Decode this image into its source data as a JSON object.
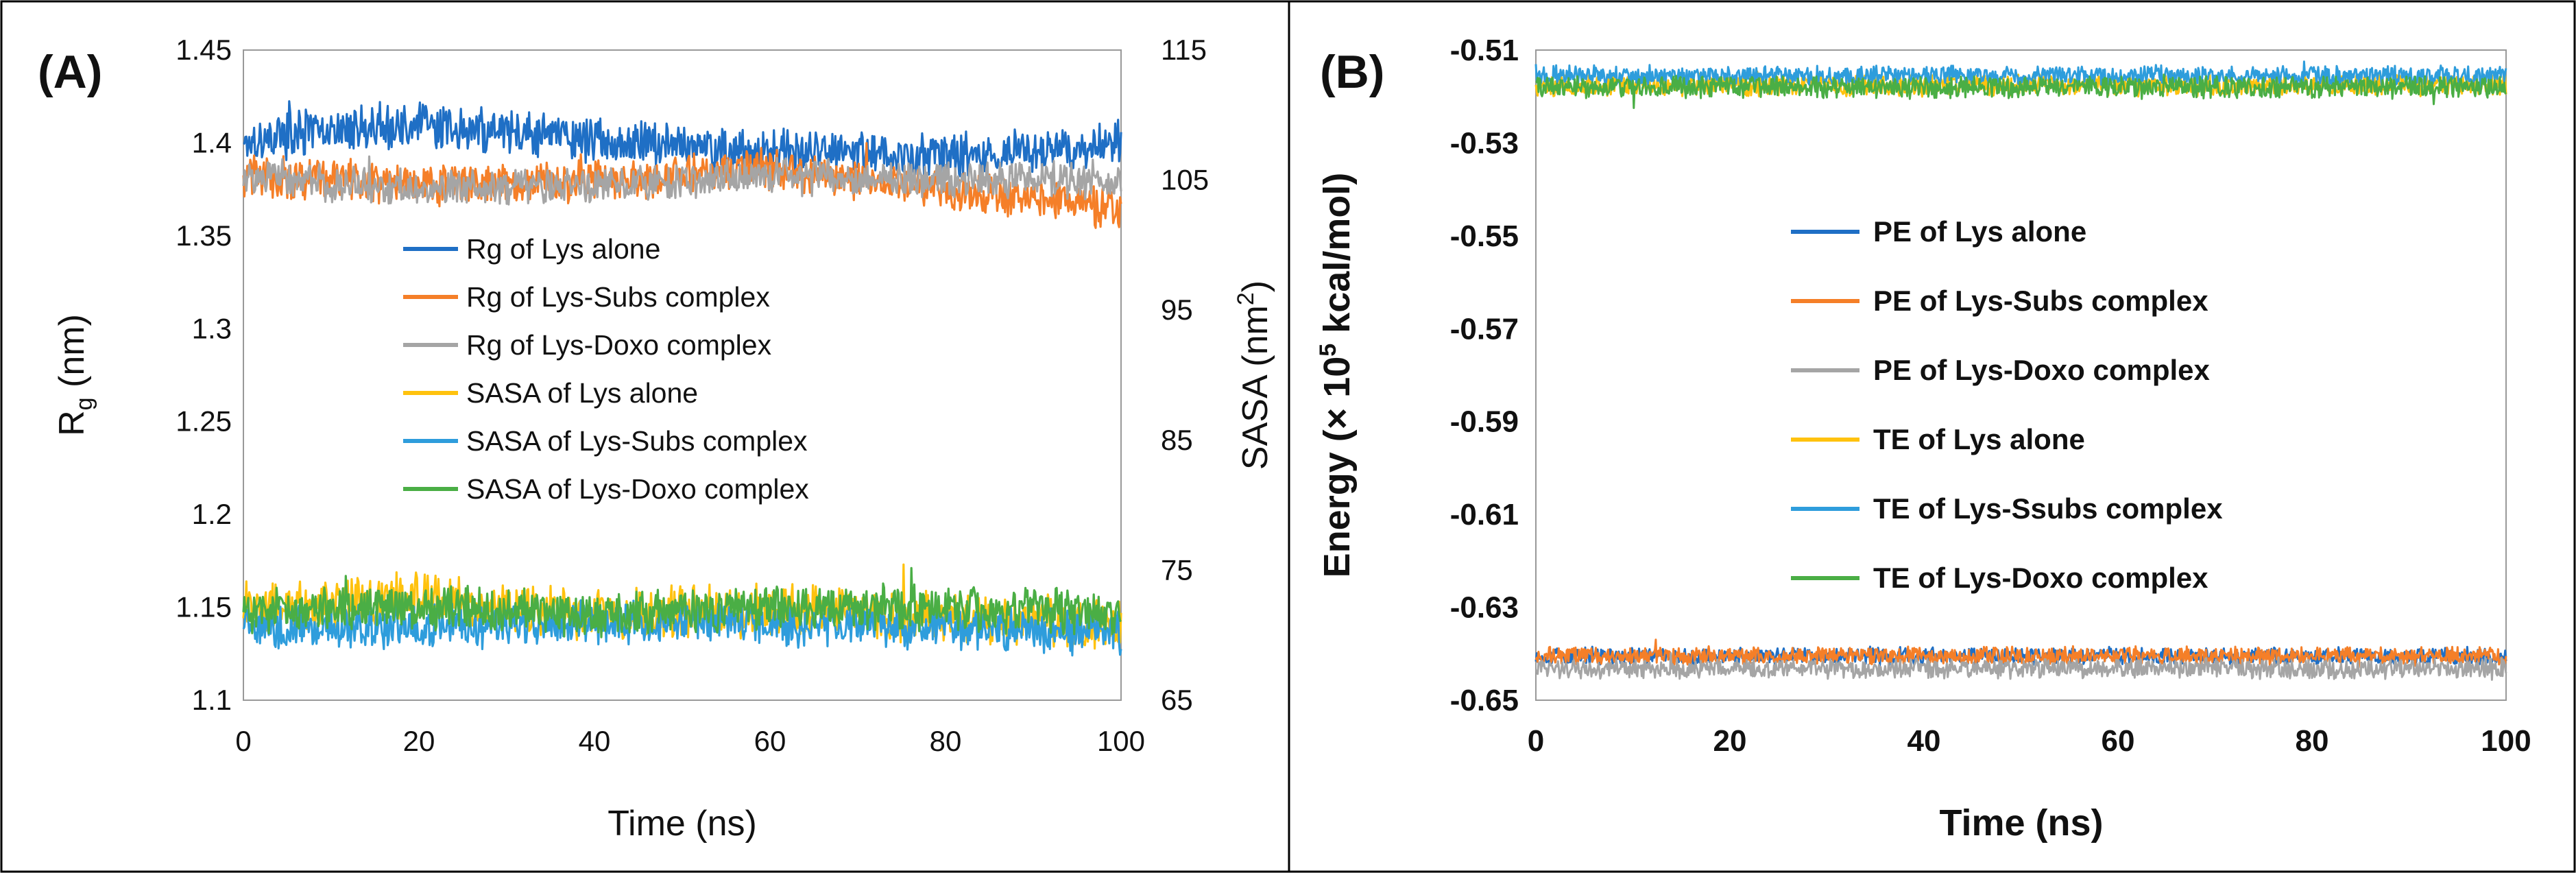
{
  "chart_data": [
    {
      "panel_label": "(A)",
      "type": "line",
      "xlabel": "Time (ns)",
      "ylabel_left": {
        "main": "R",
        "sub": "g",
        "rest": " (nm)"
      },
      "ylabel_right": {
        "main": "SASA (nm",
        "sup": "2",
        "rest": ")"
      },
      "xlim": [
        0,
        100
      ],
      "ylim_left": [
        1.1,
        1.45
      ],
      "ylim_right": [
        65,
        115
      ],
      "x_ticks": [
        "0",
        "20",
        "40",
        "60",
        "80",
        "100"
      ],
      "y_ticks_left": [
        "1.1",
        "1.15",
        "1.2",
        "1.25",
        "1.3",
        "1.35",
        "1.4",
        "1.45"
      ],
      "y_ticks_right": [
        "65",
        "75",
        "85",
        "95",
        "105",
        "115"
      ],
      "series": [
        {
          "name": "Rg of Lys alone",
          "color": "#1f6fc5",
          "axis": "left",
          "mean": 1.402,
          "amplitude": 0.01,
          "trend": [
            1.402,
            1.41,
            1.402,
            1.395,
            1.393,
            1.4
          ]
        },
        {
          "name": "Rg of Lys-Subs complex",
          "color": "#f57f28",
          "axis": "left",
          "mean": 1.383,
          "amplitude": 0.009,
          "trend": [
            1.383,
            1.378,
            1.38,
            1.386,
            1.375,
            1.365
          ]
        },
        {
          "name": "Rg of Lys-Doxo complex",
          "color": "#a5a5a5",
          "axis": "left",
          "mean": 1.382,
          "amplitude": 0.008,
          "trend": [
            1.382,
            1.375,
            1.378,
            1.382,
            1.38,
            1.38
          ]
        },
        {
          "name": "SASA of Lys alone",
          "color": "#ffc20e",
          "axis": "right",
          "mean": 72.0,
          "amplitude": 1.6,
          "trend": [
            72.0,
            73.0,
            71.5,
            72.0,
            71.3,
            70.8
          ]
        },
        {
          "name": "SASA of Lys-Subs complex",
          "color": "#2e9ddc",
          "axis": "right",
          "mean": 70.8,
          "amplitude": 1.4,
          "trend": [
            70.8,
            70.5,
            71.0,
            71.0,
            70.6,
            70.2
          ]
        },
        {
          "name": "SASA of Lys-Doxo complex",
          "color": "#4aae45",
          "axis": "right",
          "mean": 71.8,
          "amplitude": 1.4,
          "trend": [
            71.8,
            72.2,
            71.6,
            72.3,
            72.0,
            71.8
          ]
        }
      ]
    },
    {
      "panel_label": "(B)",
      "type": "line",
      "xlabel": "Time (ns)",
      "ylabel": {
        "pre": "Energy (× 10",
        "sup": "5",
        "rest": " kcal/mol)"
      },
      "xlim": [
        0,
        100
      ],
      "ylim": [
        -0.65,
        -0.51
      ],
      "x_ticks": [
        "0",
        "20",
        "40",
        "60",
        "80",
        "100"
      ],
      "y_ticks": [
        "-0.51",
        "-0.53",
        "-0.55",
        "-0.57",
        "-0.59",
        "-0.61",
        "-0.63",
        "-0.65"
      ],
      "series": [
        {
          "name": "PE of Lys alone",
          "color": "#1f6fc5",
          "mean": -0.6405,
          "amplitude": 0.0016
        },
        {
          "name": "PE of Lys-Subs complex",
          "color": "#f57f28",
          "mean": -0.6405,
          "amplitude": 0.0017
        },
        {
          "name": "PE of Lys-Doxo complex",
          "color": "#a5a5a5",
          "mean": -0.6432,
          "amplitude": 0.0018
        },
        {
          "name": "TE of Lys alone",
          "color": "#ffc20e",
          "mean": -0.5175,
          "amplitude": 0.002
        },
        {
          "name": "TE of Lys-Ssubs complex",
          "color": "#2e9ddc",
          "mean": -0.5155,
          "amplitude": 0.0018
        },
        {
          "name": "TE of Lys-Doxo complex",
          "color": "#4aae45",
          "mean": -0.518,
          "amplitude": 0.002
        }
      ]
    }
  ]
}
